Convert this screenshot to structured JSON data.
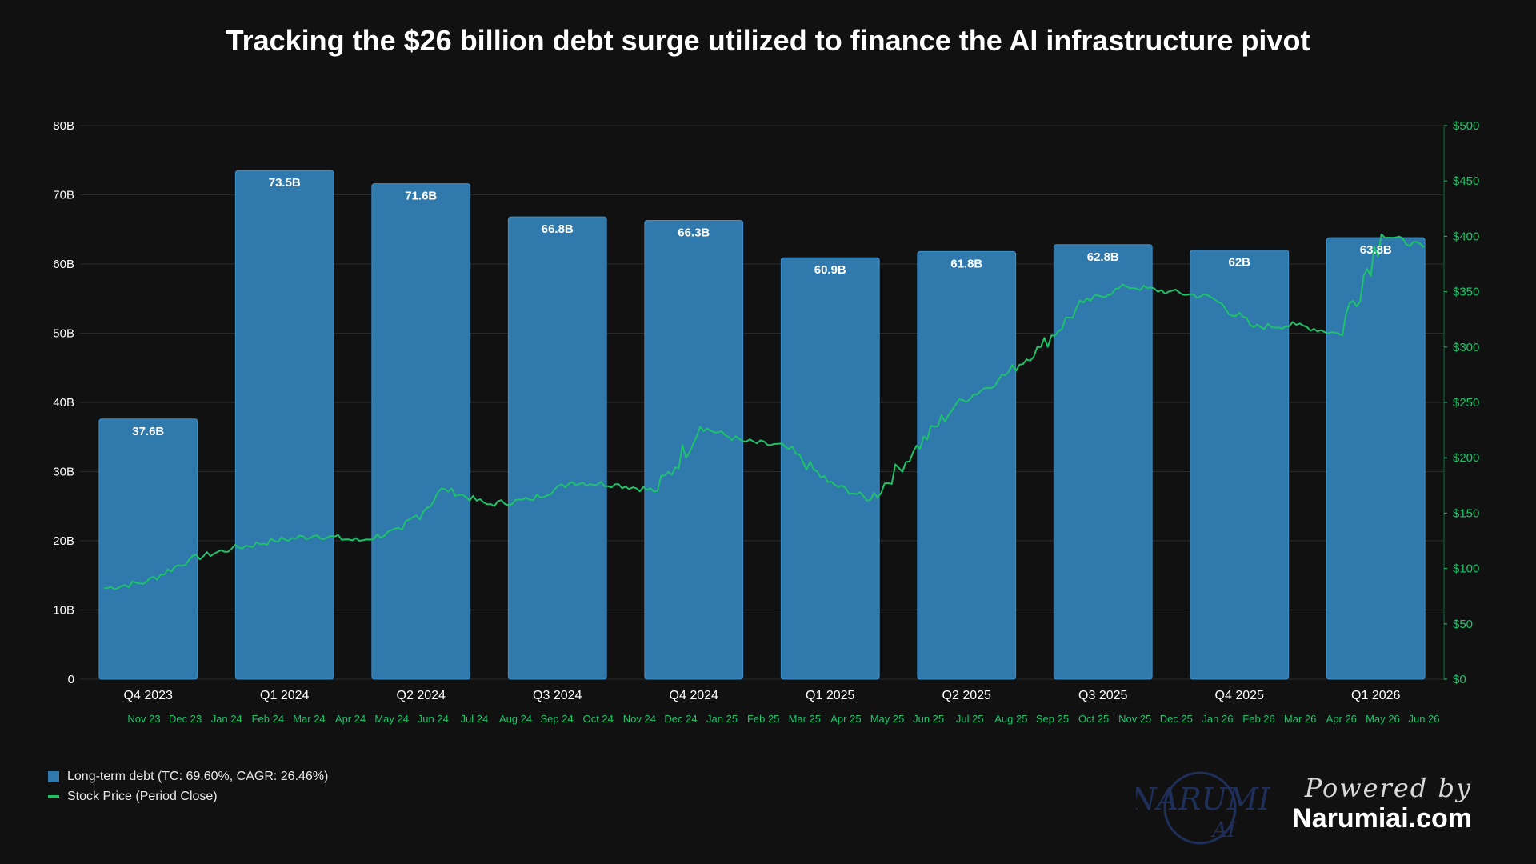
{
  "title": "Tracking the $26 billion debt surge utilized to finance the AI infrastructure pivot",
  "colors": {
    "bar": "#2f79ad",
    "bar_edge": "#3f8fcc",
    "line": "#1fc26a",
    "background": "#111111",
    "grid": "#2a2a2a",
    "left_axis_text": "#ffffff",
    "right_axis_text": "#1fc26a"
  },
  "chart_data": {
    "type": "bar",
    "categories": [
      "Q4 2023",
      "Q1 2024",
      "Q2 2024",
      "Q3 2024",
      "Q4 2024",
      "Q1 2025",
      "Q2 2025",
      "Q3 2025",
      "Q4 2025",
      "Q1 2026"
    ],
    "series": [
      {
        "name": "Long-term debt (TC: 69.60%, CAGR: 26.46%)",
        "type": "bar",
        "axis": "left",
        "values": [
          37.6,
          73.5,
          71.6,
          66.8,
          66.3,
          60.9,
          61.8,
          62.8,
          62.0,
          63.8
        ],
        "data_labels": [
          "37.6B",
          "73.5B",
          "71.6B",
          "66.8B",
          "66.3B",
          "60.9B",
          "61.8B",
          "62.8B",
          "62B",
          "63.8B"
        ]
      },
      {
        "name": "Stock Price (Period Close)",
        "type": "line",
        "axis": "right",
        "x": [
          "Nov 23",
          "Dec 23",
          "Jan 24",
          "Feb 24",
          "Mar 24",
          "Apr 24",
          "May 24",
          "Jun 24",
          "Jul 24",
          "Aug 24",
          "Sep 24",
          "Oct 24",
          "Nov 24",
          "Dec 24",
          "Jan 25",
          "Feb 25",
          "Mar 25",
          "Apr 25",
          "May 25",
          "Jun 25",
          "Jul 25",
          "Aug 25",
          "Sep 25",
          "Oct 25",
          "Nov 25",
          "Dec 25",
          "Jan 26",
          "Feb 26",
          "Mar 26",
          "Apr 26",
          "May 26",
          "Jun 26"
        ],
        "values": [
          82,
          88,
          108,
          118,
          125,
          130,
          125,
          135,
          172,
          158,
          162,
          178,
          176,
          170,
          228,
          215,
          210,
          178,
          162,
          205,
          248,
          270,
          300,
          340,
          355,
          350,
          345,
          318,
          320,
          312,
          402,
          390
        ]
      }
    ],
    "x_months": [
      "Nov 23",
      "Dec 23",
      "Jan 24",
      "Feb 24",
      "Mar 24",
      "Apr 24",
      "May 24",
      "Jun 24",
      "Jul 24",
      "Aug 24",
      "Sep 24",
      "Oct 24",
      "Nov 24",
      "Dec 24",
      "Jan 25",
      "Feb 25",
      "Mar 25",
      "Apr 25",
      "May 25",
      "Jun 25",
      "Jul 25",
      "Aug 25",
      "Sep 25",
      "Oct 25",
      "Nov 25",
      "Dec 25",
      "Jan 26",
      "Feb 26",
      "Mar 26",
      "Apr 26",
      "May 26",
      "Jun 26"
    ],
    "left_ticks": [
      "0",
      "10B",
      "20B",
      "30B",
      "40B",
      "50B",
      "60B",
      "70B",
      "80B"
    ],
    "right_ticks": [
      "$0",
      "$50",
      "$100",
      "$150",
      "$200",
      "$250",
      "$300",
      "$350",
      "$400",
      "$450",
      "$500"
    ],
    "ylim_left": [
      0,
      80
    ],
    "ylim_right": [
      0,
      500
    ],
    "grid": true,
    "legend_position": "bottom-left"
  },
  "legend": [
    {
      "label": "Long-term debt (TC: 69.60%, CAGR: 26.46%)",
      "kind": "swatch"
    },
    {
      "label": "Stock Price (Period Close)",
      "kind": "line"
    }
  ],
  "branding": {
    "logo_text": "NARUMI",
    "logo_sub": "AI",
    "powered_by": "Powered by",
    "site": "Narumiai.com"
  }
}
